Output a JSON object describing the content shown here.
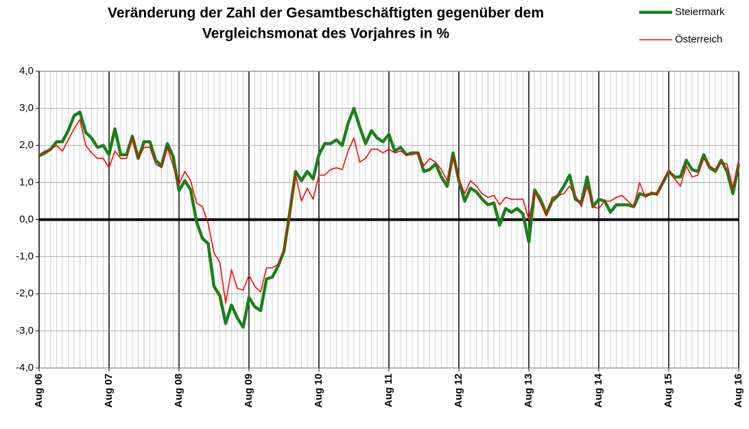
{
  "chart_data": {
    "type": "line",
    "title": [
      "Veränderung der Zahl der Gesamtbeschäftigten gegenüber dem",
      "Vergleichsmonat des Vorjahres in %"
    ],
    "categories": [
      "Aug 06",
      null,
      null,
      null,
      null,
      null,
      null,
      null,
      null,
      null,
      null,
      null,
      "Aug 07",
      null,
      null,
      null,
      null,
      null,
      null,
      null,
      null,
      null,
      null,
      null,
      "Aug 08",
      null,
      null,
      null,
      null,
      null,
      null,
      null,
      null,
      null,
      null,
      null,
      "Aug 09",
      null,
      null,
      null,
      null,
      null,
      null,
      null,
      null,
      null,
      null,
      null,
      "Aug 10",
      null,
      null,
      null,
      null,
      null,
      null,
      null,
      null,
      null,
      null,
      null,
      "Aug 11",
      null,
      null,
      null,
      null,
      null,
      null,
      null,
      null,
      null,
      null,
      null,
      "Aug 12",
      null,
      null,
      null,
      null,
      null,
      null,
      null,
      null,
      null,
      null,
      null,
      "Aug 13",
      null,
      null,
      null,
      null,
      null,
      null,
      null,
      null,
      null,
      null,
      null,
      "Aug 14",
      null,
      null,
      null,
      null,
      null,
      null,
      null,
      null,
      null,
      null,
      null,
      "Aug 15",
      null,
      null,
      null,
      null,
      null,
      null,
      null,
      null,
      null,
      null,
      null,
      "Aug 16"
    ],
    "series": [
      {
        "name": "Steiermark",
        "color": "#1a801a",
        "width": 4.5,
        "values": [
          1.72,
          1.8,
          1.9,
          2.1,
          2.1,
          2.4,
          2.8,
          2.9,
          2.35,
          2.2,
          1.95,
          2.0,
          1.75,
          2.45,
          1.75,
          1.75,
          2.25,
          1.65,
          2.1,
          2.1,
          1.6,
          1.45,
          2.05,
          1.7,
          0.78,
          1.05,
          0.8,
          -0.05,
          -0.5,
          -0.65,
          -1.8,
          -2.05,
          -2.8,
          -2.3,
          -2.65,
          -2.9,
          -2.1,
          -2.35,
          -2.45,
          -1.6,
          -1.55,
          -1.25,
          -0.85,
          0.2,
          1.3,
          1.05,
          1.3,
          1.1,
          1.75,
          2.05,
          2.05,
          2.15,
          2.0,
          2.6,
          3.0,
          2.5,
          2.05,
          2.4,
          2.2,
          2.1,
          2.3,
          1.85,
          1.95,
          1.75,
          1.8,
          1.8,
          1.3,
          1.35,
          1.5,
          1.15,
          0.9,
          1.8,
          1.05,
          0.5,
          0.85,
          0.75,
          0.55,
          0.4,
          0.45,
          -0.15,
          0.3,
          0.2,
          0.3,
          0.15,
          -0.6,
          0.8,
          0.55,
          0.15,
          0.5,
          0.65,
          0.9,
          1.2,
          0.55,
          0.45,
          1.15,
          0.35,
          0.55,
          0.5,
          0.2,
          0.4,
          0.4,
          0.4,
          0.35,
          0.7,
          0.65,
          0.7,
          0.7,
          1.0,
          1.3,
          1.15,
          1.15,
          1.6,
          1.35,
          1.3,
          1.75,
          1.4,
          1.3,
          1.6,
          1.3,
          0.7,
          1.5
        ]
      },
      {
        "name": "Österreich",
        "color": "#ff0000",
        "width": 1.6,
        "values": [
          1.75,
          1.85,
          1.9,
          2.0,
          1.85,
          2.15,
          2.45,
          2.7,
          2.0,
          1.8,
          1.65,
          1.65,
          1.4,
          1.85,
          1.65,
          1.65,
          2.2,
          1.65,
          1.95,
          1.95,
          1.5,
          1.4,
          1.95,
          1.45,
          0.95,
          1.3,
          1.05,
          0.45,
          0.35,
          -0.1,
          -0.9,
          -1.15,
          -2.25,
          -1.35,
          -1.85,
          -1.9,
          -1.5,
          -1.8,
          -1.95,
          -1.3,
          -1.3,
          -1.2,
          -0.8,
          0.15,
          1.2,
          0.5,
          0.85,
          0.55,
          1.2,
          1.2,
          1.35,
          1.4,
          1.35,
          1.85,
          2.2,
          1.55,
          1.65,
          1.9,
          1.9,
          1.8,
          1.9,
          1.8,
          1.85,
          1.75,
          1.75,
          1.8,
          1.45,
          1.65,
          1.55,
          1.35,
          1.05,
          1.7,
          1.1,
          0.7,
          1.05,
          0.9,
          0.7,
          0.6,
          0.65,
          0.4,
          0.6,
          0.55,
          0.55,
          0.55,
          0.0,
          0.75,
          0.45,
          0.1,
          0.6,
          0.65,
          0.7,
          0.9,
          0.65,
          0.35,
          0.9,
          0.35,
          0.3,
          0.5,
          0.5,
          0.6,
          0.65,
          0.5,
          0.35,
          1.0,
          0.6,
          0.75,
          0.65,
          1.0,
          1.35,
          1.1,
          0.9,
          1.45,
          1.15,
          1.2,
          1.65,
          1.45,
          1.35,
          1.55,
          1.5,
          0.85,
          1.6
        ]
      }
    ],
    "ylim": [
      -4,
      4
    ],
    "yticks": [
      {
        "value": -4,
        "label": "-4,0"
      },
      {
        "value": -3,
        "label": "-3,0"
      },
      {
        "value": -2,
        "label": "-2,0"
      },
      {
        "value": -1,
        "label": "-1,0"
      },
      {
        "value": 0,
        "label": "0,0"
      },
      {
        "value": 1,
        "label": "1,0"
      },
      {
        "value": 2,
        "label": "2,0"
      },
      {
        "value": 3,
        "label": "3,0"
      },
      {
        "value": 4,
        "label": "4,0"
      }
    ],
    "grid": true,
    "legend": "top-right"
  }
}
